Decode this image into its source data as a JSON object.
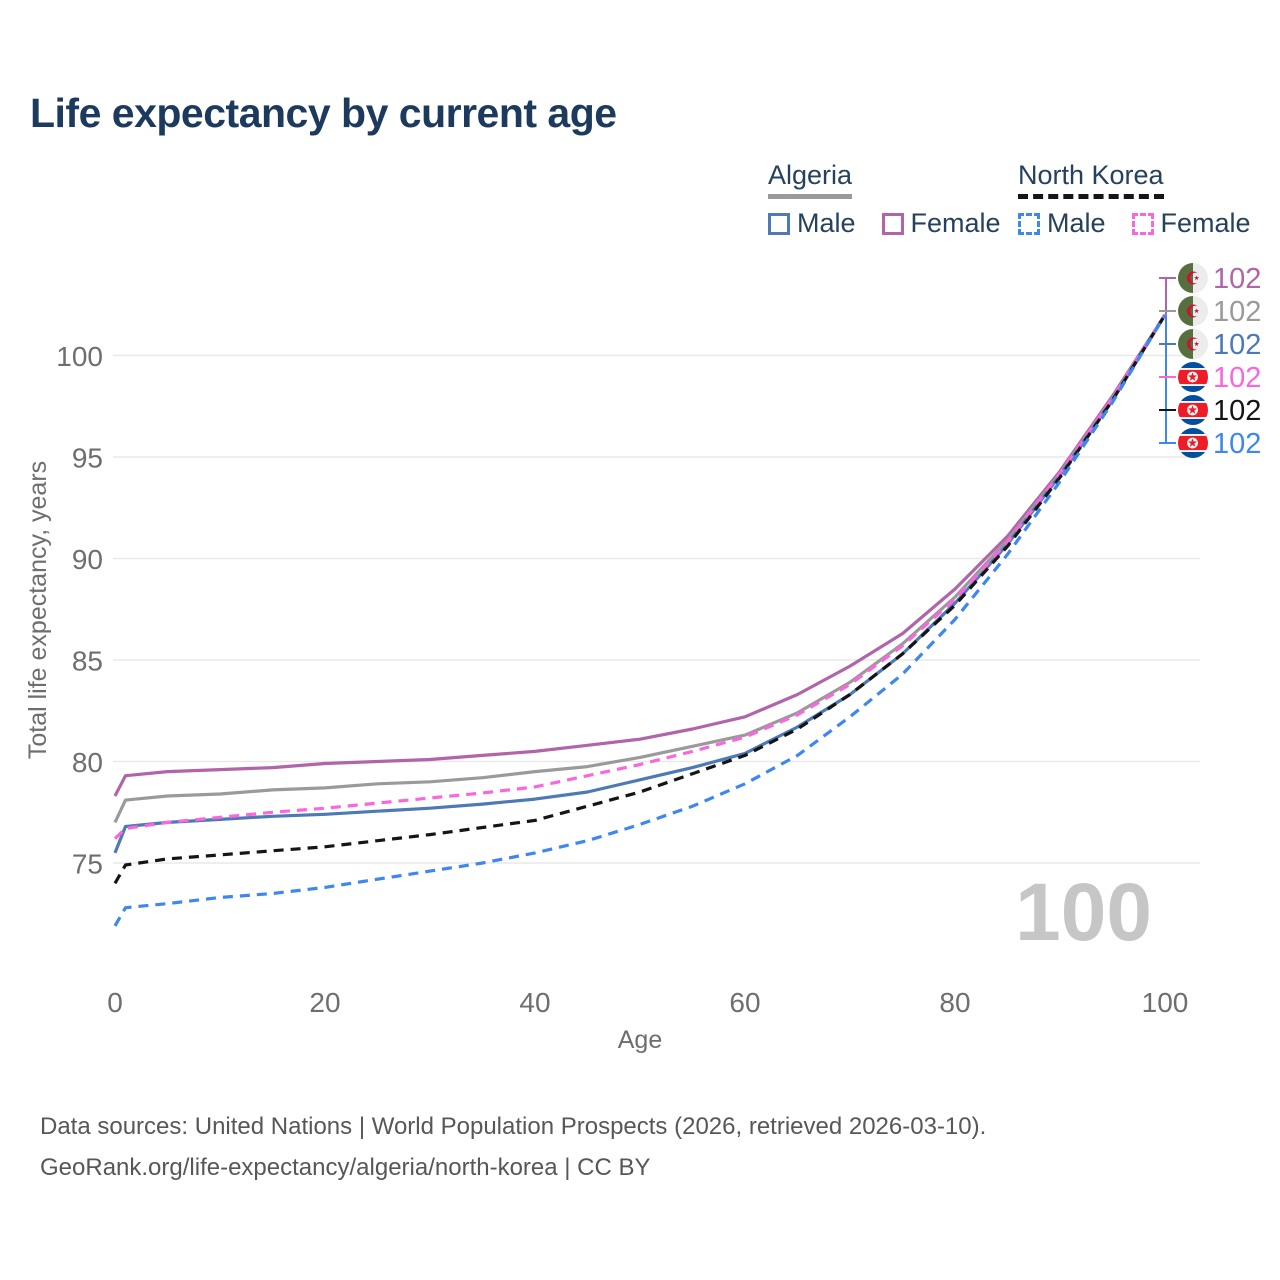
{
  "title": "Life expectancy by current age",
  "legend": {
    "groups": [
      {
        "country": "Algeria",
        "line_style": "solid",
        "underline_color": "#9a9a9a",
        "items": [
          {
            "label": "Male",
            "color": "#4d79b5"
          },
          {
            "label": "Female",
            "color": "#b164a9"
          }
        ]
      },
      {
        "country": "North Korea",
        "line_style": "dashed",
        "underline_color": "#151515",
        "items": [
          {
            "label": "Male",
            "color": "#3d87ee"
          },
          {
            "label": "Female",
            "color": "#f966dd"
          }
        ]
      }
    ]
  },
  "watermark": "100",
  "footer": {
    "line1": "Data sources: United Nations | World Population Prospects (2026, retrieved 2026-03-10).",
    "line2": "GeoRank.org/life-expectancy/algeria/north-korea | CC BY"
  },
  "colors": {
    "title_text": "#1c3a5e",
    "legend_text": "#26415e",
    "axis_text": "#6e6e6e",
    "gridline": "#e9e9e9",
    "footer_text": "#575757",
    "watermark": "#c6c6c6"
  },
  "chart_data": {
    "type": "line",
    "title": "Life expectancy by current age",
    "xlabel": "Age",
    "ylabel": "Total life expectancy, years",
    "xlim": [
      0,
      100
    ],
    "ylim": [
      71.5,
      103
    ],
    "x_ticks": [
      0,
      20,
      40,
      60,
      80,
      100
    ],
    "y_ticks": [
      75,
      80,
      85,
      90,
      95,
      100
    ],
    "grid": "horizontal-only",
    "legend_position": "top-right",
    "x": [
      0,
      1,
      5,
      10,
      15,
      20,
      25,
      30,
      35,
      40,
      45,
      50,
      55,
      60,
      65,
      70,
      75,
      80,
      85,
      90,
      95,
      100
    ],
    "series": [
      {
        "name": "Algeria Female",
        "country": "Algeria",
        "sex": "Female",
        "flag": "algeria",
        "color": "#b164a9",
        "dashed": false,
        "end_label": "102",
        "values": [
          78.3,
          79.3,
          79.5,
          79.6,
          79.7,
          79.9,
          80.0,
          80.1,
          80.3,
          80.5,
          80.8,
          81.1,
          81.6,
          82.2,
          83.3,
          84.7,
          86.3,
          88.5,
          91.1,
          94.3,
          98.0,
          102.0
        ]
      },
      {
        "name": "Algeria Both sexes",
        "country": "Algeria",
        "sex": "Both",
        "flag": "algeria",
        "color": "#9a9a9a",
        "dashed": false,
        "end_label": "102",
        "values": [
          77.0,
          78.1,
          78.3,
          78.4,
          78.6,
          78.7,
          78.9,
          79.0,
          79.2,
          79.5,
          79.75,
          80.2,
          80.75,
          81.3,
          82.4,
          83.9,
          85.8,
          88.1,
          90.9,
          94.2,
          97.9,
          102.0
        ]
      },
      {
        "name": "Algeria Male",
        "country": "Algeria",
        "sex": "Male",
        "flag": "algeria",
        "color": "#4d79b5",
        "dashed": false,
        "end_label": "102",
        "values": [
          75.5,
          76.8,
          77.0,
          77.15,
          77.3,
          77.4,
          77.55,
          77.7,
          77.9,
          78.15,
          78.5,
          79.1,
          79.7,
          80.4,
          81.7,
          83.3,
          85.3,
          87.8,
          90.7,
          94.1,
          97.8,
          102.0
        ]
      },
      {
        "name": "North Korea Female",
        "country": "North Korea",
        "sex": "Female",
        "flag": "north-korea",
        "color": "#f966dd",
        "dashed": true,
        "end_label": "102",
        "values": [
          76.2,
          76.7,
          77.0,
          77.25,
          77.5,
          77.7,
          77.95,
          78.2,
          78.45,
          78.75,
          79.3,
          79.85,
          80.5,
          81.2,
          82.3,
          83.8,
          85.7,
          88.0,
          90.8,
          94.2,
          97.9,
          102.0
        ]
      },
      {
        "name": "North Korea Both sexes",
        "country": "North Korea",
        "sex": "Both",
        "flag": "north-korea",
        "color": "#151515",
        "dashed": true,
        "end_label": "102",
        "values": [
          74.0,
          74.9,
          75.2,
          75.4,
          75.6,
          75.8,
          76.1,
          76.4,
          76.75,
          77.1,
          77.8,
          78.5,
          79.4,
          80.3,
          81.6,
          83.3,
          85.3,
          87.7,
          90.6,
          94.0,
          97.8,
          102.0
        ]
      },
      {
        "name": "North Korea Male",
        "country": "North Korea",
        "sex": "Male",
        "flag": "north-korea",
        "color": "#3d87ee",
        "dashed": true,
        "end_label": "102",
        "values": [
          71.9,
          72.8,
          73.0,
          73.3,
          73.5,
          73.8,
          74.2,
          74.6,
          75.0,
          75.5,
          76.1,
          76.9,
          77.8,
          78.9,
          80.3,
          82.2,
          84.3,
          87.0,
          90.2,
          93.8,
          97.7,
          102.0
        ]
      }
    ]
  }
}
